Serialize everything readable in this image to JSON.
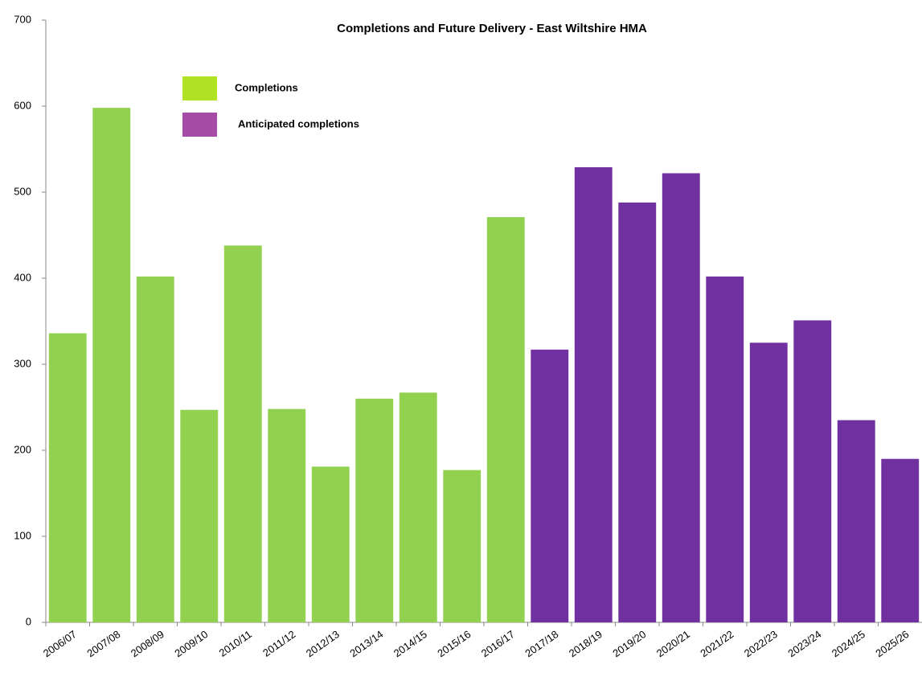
{
  "chart_data": {
    "type": "bar",
    "title": "Completions and Future Delivery - East Wiltshire HMA",
    "categories": [
      "2006/07",
      "2007/08",
      "2008/09",
      "2009/10",
      "2010/11",
      "2011/12",
      "2012/13",
      "2013/14",
      "2014/15",
      "2015/16",
      "2016/17",
      "2017/18",
      "2018/19",
      "2019/20",
      "2020/21",
      "2021/22",
      "2022/23",
      "2023/24",
      "2024/25",
      "2025/26"
    ],
    "series": [
      {
        "name": "Completions",
        "color": "#92d050",
        "legend_color": "#b2e224",
        "values": [
          336,
          598,
          402,
          247,
          438,
          248,
          181,
          260,
          267,
          177,
          471,
          null,
          null,
          null,
          null,
          null,
          null,
          null,
          null,
          null
        ]
      },
      {
        "name": "Anticipated completions",
        "color": "#7030a0",
        "legend_color": "#a64ca6",
        "values": [
          null,
          null,
          null,
          null,
          null,
          null,
          null,
          null,
          null,
          null,
          null,
          317,
          529,
          488,
          522,
          402,
          325,
          351,
          235,
          190
        ]
      }
    ],
    "ylim": [
      0,
      700
    ],
    "yticks": [
      0,
      100,
      200,
      300,
      400,
      500,
      600,
      700
    ],
    "grid": false
  }
}
